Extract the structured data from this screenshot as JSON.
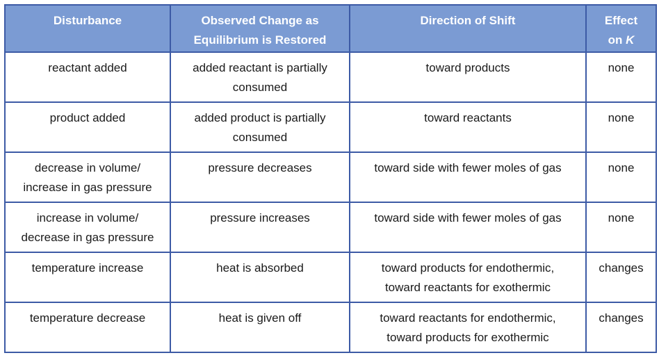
{
  "table": {
    "headers": [
      {
        "lines": [
          "Disturbance"
        ]
      },
      {
        "lines": [
          "Observed Change as",
          "Equilibrium is Restored"
        ]
      },
      {
        "lines": [
          "Direction of Shift"
        ]
      },
      {
        "lines": [
          "Effect",
          "on "
        ],
        "italic_suffix": "K"
      }
    ],
    "rows": [
      {
        "cells": [
          {
            "lines": [
              "reactant added"
            ]
          },
          {
            "lines": [
              "added reactant is partially",
              "consumed"
            ]
          },
          {
            "lines": [
              "toward products"
            ]
          },
          {
            "lines": [
              "none"
            ]
          }
        ]
      },
      {
        "cells": [
          {
            "lines": [
              "product added"
            ]
          },
          {
            "lines": [
              "added product is partially",
              "consumed"
            ]
          },
          {
            "lines": [
              "toward reactants"
            ]
          },
          {
            "lines": [
              "none"
            ]
          }
        ]
      },
      {
        "cells": [
          {
            "lines": [
              "decrease in volume/",
              "increase in gas pressure"
            ]
          },
          {
            "lines": [
              "pressure decreases"
            ]
          },
          {
            "lines": [
              "toward side with fewer moles of gas"
            ]
          },
          {
            "lines": [
              "none"
            ]
          }
        ]
      },
      {
        "cells": [
          {
            "lines": [
              "increase in volume/",
              "decrease in gas pressure"
            ]
          },
          {
            "lines": [
              "pressure increases"
            ]
          },
          {
            "lines": [
              "toward side with fewer moles of gas"
            ]
          },
          {
            "lines": [
              "none"
            ]
          }
        ]
      },
      {
        "cells": [
          {
            "lines": [
              "temperature increase"
            ]
          },
          {
            "lines": [
              "heat is absorbed"
            ]
          },
          {
            "lines": [
              "toward products for endothermic,",
              "toward reactants for exothermic"
            ]
          },
          {
            "lines": [
              "changes"
            ]
          }
        ]
      },
      {
        "cells": [
          {
            "lines": [
              "temperature decrease"
            ]
          },
          {
            "lines": [
              "heat is given off"
            ]
          },
          {
            "lines": [
              "toward reactants for endothermic,",
              "toward products for exothermic"
            ]
          },
          {
            "lines": [
              "changes"
            ]
          }
        ]
      }
    ]
  },
  "colors": {
    "header_bg": "#7b9bd3",
    "border": "#3c5aa5",
    "header_text": "#ffffff",
    "body_text": "#1a1a1a"
  }
}
